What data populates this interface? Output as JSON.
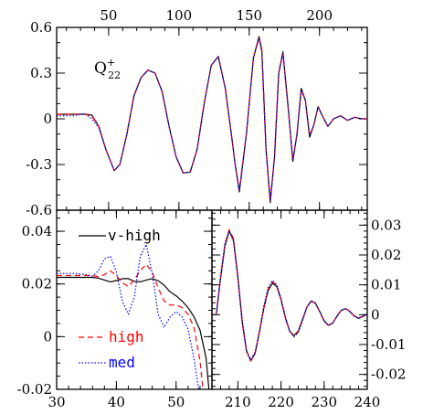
{
  "chart_data": [
    {
      "type": "line",
      "panel": "top",
      "annotation": "Q",
      "annotation_sup": "+",
      "annotation_sub": "22",
      "x_ticks_top": [
        "50",
        "100",
        "150",
        "200"
      ],
      "y_ticks": [
        "0.6",
        "0.3",
        "0",
        "-0.3",
        "-0.6"
      ],
      "xlim": [
        13,
        234
      ],
      "ylim": [
        -0.6,
        0.6
      ],
      "series": [
        {
          "name": "v-high",
          "color": "#000000",
          "dash": "solid",
          "x": [
            13,
            25,
            33,
            38,
            43,
            48,
            54,
            58,
            63,
            68,
            73,
            78,
            83,
            88,
            93,
            98,
            103,
            108,
            113,
            118,
            123,
            128,
            133,
            138,
            140,
            143,
            148,
            153,
            157,
            159,
            162,
            165,
            168,
            171,
            174,
            178,
            181,
            184,
            187,
            190,
            193,
            196,
            199,
            202,
            206,
            210,
            215,
            220,
            225,
            230,
            234
          ],
          "y": [
            0.03,
            0.03,
            0.03,
            0.025,
            -0.05,
            -0.2,
            -0.34,
            -0.3,
            -0.1,
            0.15,
            0.27,
            0.32,
            0.3,
            0.18,
            -0.05,
            -0.25,
            -0.355,
            -0.35,
            -0.2,
            0.1,
            0.35,
            0.41,
            0.2,
            -0.15,
            -0.3,
            -0.48,
            -0.1,
            0.4,
            0.54,
            0.45,
            -0.2,
            -0.55,
            -0.25,
            0.3,
            0.44,
            0.05,
            -0.28,
            -0.1,
            0.2,
            0.12,
            -0.12,
            -0.04,
            0.08,
            0.02,
            -0.05,
            0.0,
            0.02,
            -0.01,
            0.01,
            0.0,
            0.0
          ]
        },
        {
          "name": "high",
          "color": "#ff0000",
          "dash": "dashed",
          "x": [
            13,
            25,
            33,
            38,
            43,
            48,
            54,
            58,
            63,
            68,
            73,
            78,
            83,
            88,
            93,
            98,
            103,
            108,
            113,
            118,
            123,
            128,
            133,
            138,
            140,
            143,
            148,
            153,
            157,
            159,
            162,
            165,
            168,
            171,
            174,
            178,
            181,
            184,
            187,
            190,
            193,
            196,
            199,
            202,
            206,
            210,
            215,
            220,
            225,
            230,
            234
          ],
          "y": [
            0.03,
            0.03,
            0.03,
            0.02,
            -0.05,
            -0.2,
            -0.34,
            -0.3,
            -0.1,
            0.15,
            0.27,
            0.32,
            0.3,
            0.18,
            -0.05,
            -0.25,
            -0.355,
            -0.35,
            -0.2,
            0.1,
            0.35,
            0.41,
            0.2,
            -0.15,
            -0.3,
            -0.47,
            -0.1,
            0.4,
            0.53,
            0.44,
            -0.2,
            -0.54,
            -0.25,
            0.3,
            0.43,
            0.05,
            -0.27,
            -0.1,
            0.19,
            0.12,
            -0.11,
            -0.04,
            0.08,
            0.02,
            -0.05,
            0.0,
            0.02,
            -0.01,
            0.01,
            0.0,
            0.0
          ]
        },
        {
          "name": "med",
          "color": "#0000ff",
          "dash": "dotted",
          "x": [
            13,
            25,
            33,
            38,
            43,
            48,
            54,
            58,
            63,
            68,
            73,
            78,
            83,
            88,
            93,
            98,
            103,
            108,
            113,
            118,
            123,
            128,
            133,
            138,
            140,
            143,
            148,
            153,
            157,
            159,
            162,
            165,
            168,
            171,
            174,
            178,
            181,
            184,
            187,
            190,
            193,
            196,
            199,
            202,
            206,
            210,
            215,
            220,
            225,
            230,
            234
          ],
          "y": [
            0.02,
            0.02,
            0.035,
            0.0,
            -0.06,
            -0.2,
            -0.34,
            -0.3,
            -0.1,
            0.15,
            0.27,
            0.32,
            0.3,
            0.18,
            -0.05,
            -0.25,
            -0.355,
            -0.35,
            -0.2,
            0.1,
            0.35,
            0.41,
            0.2,
            -0.15,
            -0.3,
            -0.47,
            -0.1,
            0.4,
            0.53,
            0.44,
            -0.2,
            -0.54,
            -0.25,
            0.3,
            0.43,
            0.05,
            -0.27,
            -0.1,
            0.19,
            0.12,
            -0.11,
            -0.04,
            0.08,
            0.02,
            -0.05,
            0.0,
            0.02,
            -0.01,
            0.01,
            0.0,
            0.0
          ]
        }
      ]
    },
    {
      "type": "line",
      "panel": "bottom-left",
      "x_ticks_bottom": [
        "30",
        "40",
        "50"
      ],
      "y_ticks": [
        "0.04",
        "0.02",
        "0",
        "-0.02"
      ],
      "xlim": [
        30,
        56
      ],
      "ylim": [
        -0.02,
        0.048
      ],
      "legend": [
        {
          "label": "v-high",
          "color": "#000000",
          "dash": "solid"
        },
        {
          "label": "high",
          "color": "#ff0000",
          "dash": "dashed"
        },
        {
          "label": "med",
          "color": "#0000ff",
          "dash": "dotted"
        }
      ],
      "series": [
        {
          "name": "v-high",
          "color": "#000000",
          "dash": "solid",
          "x": [
            30,
            33,
            36,
            37,
            38,
            39,
            40,
            41,
            42,
            43,
            44,
            45,
            46,
            47,
            48,
            49,
            50,
            51,
            52,
            53,
            54,
            55,
            55.5
          ],
          "y": [
            0.0225,
            0.0225,
            0.0225,
            0.0222,
            0.0215,
            0.0208,
            0.0213,
            0.022,
            0.022,
            0.021,
            0.0208,
            0.0215,
            0.022,
            0.0212,
            0.0195,
            0.017,
            0.0155,
            0.0135,
            0.011,
            0.0075,
            0.0025,
            -0.008,
            -0.02
          ]
        },
        {
          "name": "high",
          "color": "#ff0000",
          "dash": "dashed",
          "x": [
            30,
            33,
            36,
            37,
            38,
            39,
            40,
            41,
            42,
            43,
            44,
            45,
            46,
            47,
            48,
            49,
            50,
            51,
            52,
            53,
            54,
            54.5
          ],
          "y": [
            0.0232,
            0.0232,
            0.0232,
            0.0228,
            0.0235,
            0.025,
            0.0232,
            0.0205,
            0.019,
            0.0215,
            0.025,
            0.0275,
            0.0245,
            0.0185,
            0.0135,
            0.012,
            0.012,
            0.011,
            0.0085,
            0.0035,
            -0.009,
            -0.02
          ]
        },
        {
          "name": "med",
          "color": "#0000ff",
          "dash": "dotted",
          "x": [
            30,
            33,
            35,
            36,
            37,
            38,
            39,
            40,
            41,
            42,
            43,
            44,
            45,
            46,
            47,
            48,
            49,
            50,
            51,
            52,
            53,
            53.8
          ],
          "y": [
            0.024,
            0.024,
            0.0235,
            0.023,
            0.025,
            0.0295,
            0.0305,
            0.0245,
            0.0135,
            0.0085,
            0.015,
            0.0305,
            0.035,
            0.024,
            0.0085,
            0.0035,
            0.0075,
            0.0095,
            0.0075,
            0.003,
            -0.0085,
            -0.02
          ]
        }
      ]
    },
    {
      "type": "line",
      "panel": "bottom-right",
      "x_ticks_bottom": [
        "210",
        "220",
        "230",
        "240"
      ],
      "y_ticks_right": [
        "0.03",
        "0.02",
        "0.01",
        "0",
        "-0.01",
        "-0.02"
      ],
      "xlim": [
        204,
        240
      ],
      "ylim": [
        -0.025,
        0.035
      ],
      "series": [
        {
          "name": "v-high",
          "color": "#000000",
          "dash": "solid",
          "x": [
            205,
            206,
            207,
            208,
            209,
            210,
            211,
            212,
            213,
            214,
            215,
            216,
            217,
            218,
            219,
            220,
            221,
            222,
            223,
            224,
            225,
            226,
            227,
            228,
            229,
            230,
            231,
            232,
            233,
            234,
            235,
            236,
            237,
            238,
            239,
            240
          ],
          "y": [
            0.0,
            0.012,
            0.023,
            0.028,
            0.025,
            0.013,
            -0.002,
            -0.012,
            -0.0155,
            -0.013,
            -0.006,
            0.002,
            0.008,
            0.0105,
            0.0095,
            0.005,
            -0.001,
            -0.0055,
            -0.007,
            -0.0055,
            -0.0015,
            0.0025,
            0.0045,
            0.0038,
            0.001,
            -0.002,
            -0.0035,
            -0.0028,
            -0.0005,
            0.0015,
            0.002,
            0.001,
            -0.0005,
            -0.0012,
            -0.0006,
            0.0002
          ]
        },
        {
          "name": "high",
          "color": "#ff0000",
          "dash": "dashed",
          "x": [
            205,
            206,
            207,
            208,
            209,
            210,
            211,
            212,
            213,
            214,
            215,
            216,
            217,
            218,
            219,
            220,
            221,
            222,
            223,
            224,
            225,
            226,
            227,
            228,
            229,
            230,
            231,
            232,
            233,
            234,
            235,
            236,
            237,
            238,
            239,
            240
          ],
          "y": [
            0.0,
            0.012,
            0.0235,
            0.0285,
            0.0255,
            0.013,
            -0.002,
            -0.012,
            -0.0155,
            -0.013,
            -0.006,
            0.002,
            0.0085,
            0.011,
            0.0098,
            0.0052,
            -0.001,
            -0.0055,
            -0.0072,
            -0.0058,
            -0.0018,
            0.0025,
            0.0045,
            0.0038,
            0.0008,
            -0.0022,
            -0.0036,
            -0.0028,
            -0.0004,
            0.0015,
            0.002,
            0.001,
            -0.0004,
            -0.0011,
            -0.0005,
            0.0002
          ]
        },
        {
          "name": "med",
          "color": "#0000ff",
          "dash": "dotted",
          "x": [
            205,
            206,
            207,
            208,
            209,
            210,
            211,
            212,
            213,
            214,
            215,
            216,
            217,
            218,
            219,
            220,
            221,
            222,
            223,
            224,
            225,
            226,
            227,
            228,
            229,
            230,
            231,
            232,
            233,
            234,
            235,
            236,
            237,
            238,
            239,
            240
          ],
          "y": [
            0.0,
            0.013,
            0.024,
            0.0282,
            0.0245,
            0.012,
            -0.003,
            -0.0125,
            -0.015,
            -0.0125,
            -0.0055,
            0.003,
            0.009,
            0.0115,
            0.0102,
            0.0055,
            -0.0005,
            -0.0055,
            -0.0075,
            -0.006,
            -0.002,
            0.0025,
            0.0048,
            0.004,
            0.001,
            -0.0022,
            -0.0037,
            -0.0029,
            -0.0004,
            0.0016,
            0.0021,
            0.0011,
            -0.0004,
            -0.0011,
            -0.0005,
            0.0002
          ]
        }
      ]
    }
  ]
}
